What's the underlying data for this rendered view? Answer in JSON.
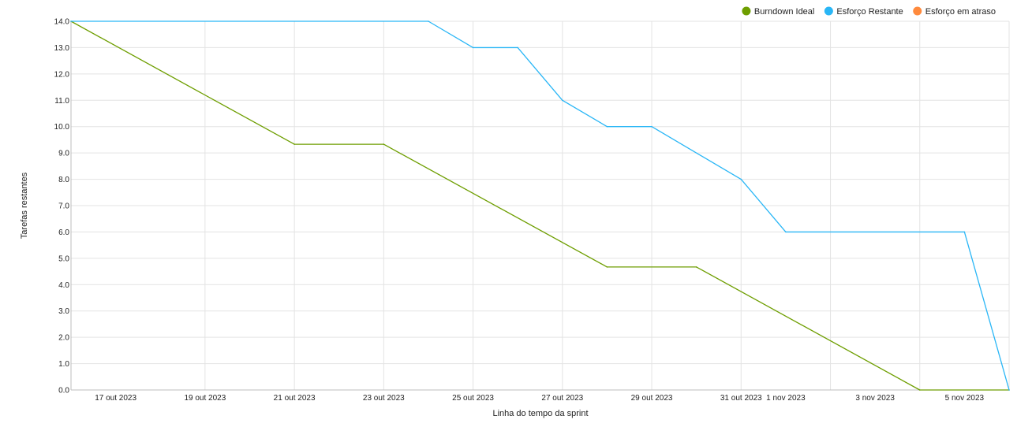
{
  "chart_data": {
    "type": "line",
    "xlabel": "Linha do tempo da sprint",
    "ylabel": "Tarefas restantes",
    "x_domain": [
      "2023-10-16",
      "2023-11-06"
    ],
    "ylim": [
      0,
      14
    ],
    "y_ticks": [
      0,
      1,
      2,
      3,
      4,
      5,
      6,
      7,
      8,
      9,
      10,
      11,
      12,
      13,
      14
    ],
    "y_tick_labels": [
      "0.0",
      "1.0",
      "2.0",
      "3.0",
      "4.0",
      "5.0",
      "6.0",
      "7.0",
      "8.0",
      "9.0",
      "10.0",
      "11.0",
      "12.0",
      "13.0",
      "14.0"
    ],
    "x_ticks": [
      {
        "date": "2023-10-17",
        "label": "17 out 2023"
      },
      {
        "date": "2023-10-19",
        "label": "19 out 2023"
      },
      {
        "date": "2023-10-21",
        "label": "21 out 2023"
      },
      {
        "date": "2023-10-23",
        "label": "23 out 2023"
      },
      {
        "date": "2023-10-25",
        "label": "25 out 2023"
      },
      {
        "date": "2023-10-27",
        "label": "27 out 2023"
      },
      {
        "date": "2023-10-29",
        "label": "29 out 2023"
      },
      {
        "date": "2023-10-31",
        "label": "31 out 2023"
      },
      {
        "date": "2023-11-01",
        "label": "1 nov 2023"
      },
      {
        "date": "2023-11-03",
        "label": "3 nov 2023"
      },
      {
        "date": "2023-11-05",
        "label": "5 nov 2023"
      }
    ],
    "vertical_grid_dates": [
      "2023-10-19",
      "2023-10-21",
      "2023-10-23",
      "2023-10-25",
      "2023-10-27",
      "2023-10-29",
      "2023-10-31",
      "2023-11-02",
      "2023-11-04",
      "2023-11-06"
    ],
    "grid": true,
    "legend_position": "top-right",
    "series": [
      {
        "name": "Burndown Ideal",
        "color": "#6e9e00",
        "points": [
          {
            "x": "2023-10-16",
            "y": 14
          },
          {
            "x": "2023-10-21",
            "y": 9.33
          },
          {
            "x": "2023-10-23",
            "y": 9.33
          },
          {
            "x": "2023-10-28",
            "y": 4.67
          },
          {
            "x": "2023-10-30",
            "y": 4.67
          },
          {
            "x": "2023-11-04",
            "y": 0
          },
          {
            "x": "2023-11-06",
            "y": 0
          }
        ]
      },
      {
        "name": "Esforço Restante",
        "color": "#29b6f6",
        "points": [
          {
            "x": "2023-10-16",
            "y": 14
          },
          {
            "x": "2023-10-24",
            "y": 14
          },
          {
            "x": "2023-10-25",
            "y": 13
          },
          {
            "x": "2023-10-26",
            "y": 13
          },
          {
            "x": "2023-10-27",
            "y": 11
          },
          {
            "x": "2023-10-28",
            "y": 10
          },
          {
            "x": "2023-10-29",
            "y": 10
          },
          {
            "x": "2023-10-31",
            "y": 8
          },
          {
            "x": "2023-11-01",
            "y": 6
          },
          {
            "x": "2023-11-05",
            "y": 6
          },
          {
            "x": "2023-11-06",
            "y": 0
          }
        ]
      },
      {
        "name": "Esforço em atraso",
        "color": "#ff8a3d",
        "points": []
      }
    ]
  }
}
